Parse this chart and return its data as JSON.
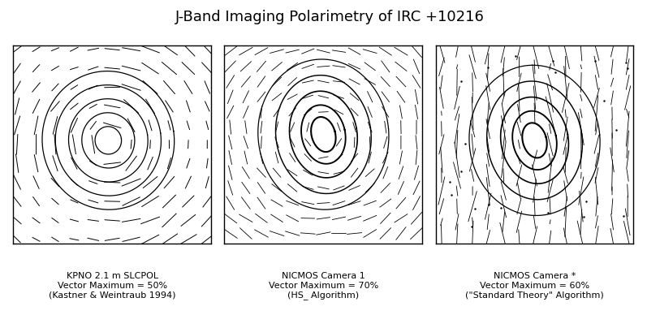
{
  "title": "J-Band Imaging Polarimetry of IRC +10216",
  "title_fontsize": 13,
  "panel_labels": [
    [
      "KPNO 2.1 m SLCPOL",
      "Vector Maximum = 50%",
      "(Kastner & Weintraub 1994)"
    ],
    [
      "NICMOS Camera 1",
      "Vector Maximum = 70%",
      "(HS_ Algorithm)"
    ],
    [
      "NICMOS Camera *",
      "Vector Maximum = 60%",
      "(\"Standard Theory\" Algorithm)"
    ]
  ],
  "background_color": "#ffffff",
  "panel_border_color": "black",
  "contour_color": "black",
  "vector_color": "black",
  "label_fontsize": 8,
  "fig_width": 8.13,
  "fig_height": 4.04
}
